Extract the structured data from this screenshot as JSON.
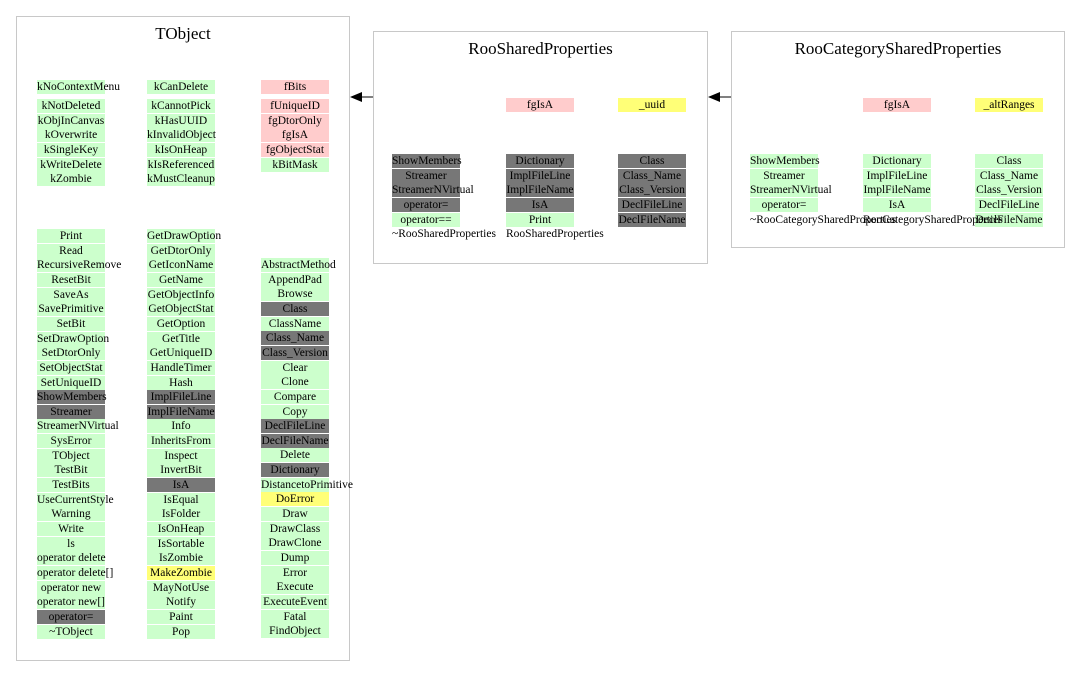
{
  "colors": {
    "green": "#ccffcc",
    "pink": "#ffcccc",
    "yellow": "#ffff77",
    "gray": "#777777"
  },
  "panels": {
    "tobject": {
      "title": "TObject",
      "enums": [
        [
          "kNoContextMenu",
          "kNotDeleted",
          "kObjInCanvas",
          "kOverwrite",
          "kSingleKey",
          "kWriteDelete",
          "kZombie"
        ],
        [
          "kCanDelete",
          "kCannotPick",
          "kHasUUID",
          "kInvalidObject",
          "kIsOnHeap",
          "kIsReferenced",
          "kMustCleanup"
        ],
        [
          "fBits",
          "fUniqueID",
          "fgDtorOnly",
          "fgIsA",
          "fgObjectStat",
          "kBitMask"
        ]
      ],
      "methods": [
        [
          "Print",
          "Read",
          "RecursiveRemove",
          "ResetBit",
          "SaveAs",
          "SavePrimitive",
          "SetBit",
          "SetDrawOption",
          "SetDtorOnly",
          "SetObjectStat",
          "SetUniqueID",
          "ShowMembers",
          "Streamer",
          "StreamerNVirtual",
          "SysError",
          "TObject",
          "TestBit",
          "TestBits",
          "UseCurrentStyle",
          "Warning",
          "Write",
          "ls",
          "operator delete",
          "operator delete[]",
          "operator new",
          "operator new[]",
          "operator=",
          "~TObject"
        ],
        [
          "GetDrawOption",
          "GetDtorOnly",
          "GetIconName",
          "GetName",
          "GetObjectInfo",
          "GetObjectStat",
          "GetOption",
          "GetTitle",
          "GetUniqueID",
          "HandleTimer",
          "Hash",
          "ImplFileLine",
          "ImplFileName",
          "Info",
          "InheritsFrom",
          "Inspect",
          "InvertBit",
          "IsA",
          "IsEqual",
          "IsFolder",
          "IsOnHeap",
          "IsSortable",
          "IsZombie",
          "MakeZombie",
          "MayNotUse",
          "Notify",
          "Paint",
          "Pop"
        ],
        [
          "AbstractMethod",
          "AppendPad",
          "Browse",
          "Class",
          "ClassName",
          "Class_Name",
          "Class_Version",
          "Clear",
          "Clone",
          "Compare",
          "Copy",
          "DeclFileLine",
          "DeclFileName",
          "Delete",
          "Dictionary",
          "DistancetoPrimitive",
          "DoError",
          "Draw",
          "DrawClass",
          "DrawClone",
          "Dump",
          "Error",
          "Execute",
          "ExecuteEvent",
          "Fatal",
          "FindObject"
        ]
      ]
    },
    "roo_shared": {
      "title": "RooSharedProperties",
      "data_members": [
        "fgIsA",
        "_uuid"
      ],
      "methods": [
        [
          "ShowMembers",
          "Streamer",
          "StreamerNVirtual",
          "operator=",
          "operator==",
          "~RooSharedProperties"
        ],
        [
          "Dictionary",
          "ImplFileLine",
          "ImplFileName",
          "IsA",
          "Print",
          "RooSharedProperties"
        ],
        [
          "Class",
          "Class_Name",
          "Class_Version",
          "DeclFileLine",
          "DeclFileName"
        ]
      ]
    },
    "roo_category": {
      "title": "RooCategorySharedProperties",
      "data_members": [
        "fgIsA",
        "_altRanges"
      ],
      "methods": [
        [
          "ShowMembers",
          "Streamer",
          "StreamerNVirtual",
          "operator=",
          "~RooCategorySharedProperties"
        ],
        [
          "Dictionary",
          "ImplFileLine",
          "ImplFileName",
          "IsA",
          "RooCategorySharedProperties"
        ],
        [
          "Class",
          "Class_Name",
          "Class_Version",
          "DeclFileLine",
          "DeclFileName"
        ]
      ]
    }
  }
}
